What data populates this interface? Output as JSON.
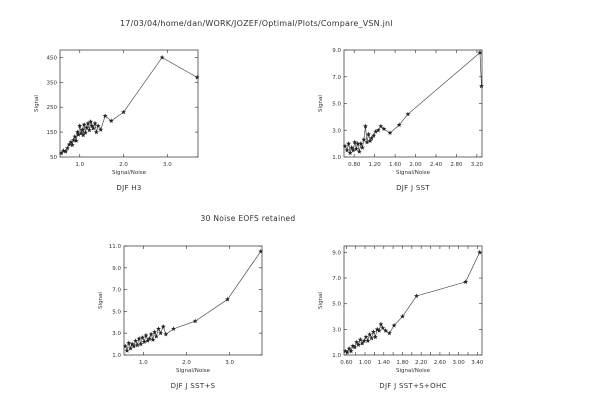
{
  "header": "17/03/04/home/dan/WORK/JOZEF/Optimal/Plots/Compare_VSN.jnl",
  "middle_caption": "30 Noise EOFS retained",
  "chart_data": [
    {
      "type": "line",
      "title": "DJF H3",
      "xlabel": "Signal/Noise",
      "ylabel": "Signal",
      "xlim": [
        0.55,
        3.7
      ],
      "ylim": [
        50,
        480
      ],
      "xticks": [
        1.0,
        2.0,
        3.0
      ],
      "xtick_labels": [
        "1.0",
        "2.0",
        "3.0"
      ],
      "yticks": [
        50,
        150,
        250,
        350,
        450
      ],
      "ytick_labels": [
        "50",
        "150",
        "250",
        "350",
        "450"
      ],
      "grid": false,
      "marker": "star",
      "series": [
        {
          "x": [
            0.58,
            0.63,
            0.68,
            0.72,
            0.76,
            0.8,
            0.83,
            0.86,
            0.89,
            0.92,
            0.95,
            0.97,
            1.0,
            1.03,
            1.06,
            1.08,
            1.1,
            1.13,
            1.16,
            1.19,
            1.22,
            1.25,
            1.28,
            1.31,
            1.35,
            1.38,
            1.42,
            1.48,
            1.58,
            1.72,
            2.0,
            2.88,
            3.68
          ],
          "y": [
            65,
            75,
            72,
            85,
            100,
            110,
            98,
            118,
            132,
            115,
            150,
            140,
            175,
            145,
            160,
            138,
            180,
            148,
            168,
            185,
            158,
            192,
            175,
            165,
            185,
            150,
            175,
            160,
            215,
            195,
            230,
            450,
            370
          ]
        }
      ]
    },
    {
      "type": "line",
      "title": "DJF J SST",
      "xlabel": "Signal/Noise",
      "ylabel": "Signal",
      "xlim": [
        0.6,
        3.3
      ],
      "ylim": [
        1.0,
        9.0
      ],
      "xticks": [
        0.8,
        1.2,
        1.6,
        2.0,
        2.4,
        2.8,
        3.2
      ],
      "xtick_labels": [
        "0.80",
        "1.20",
        "1.60",
        "2.00",
        "2.40",
        "2.80",
        "3.20"
      ],
      "yticks": [
        1.0,
        3.0,
        5.0,
        7.0,
        9.0
      ],
      "ytick_labels": [
        "1.0",
        "3.0",
        "5.0",
        "7.0",
        "9.0"
      ],
      "grid": false,
      "marker": "star",
      "series": [
        {
          "x": [
            0.62,
            0.66,
            0.69,
            0.72,
            0.75,
            0.78,
            0.81,
            0.84,
            0.87,
            0.9,
            0.93,
            0.96,
            0.99,
            1.02,
            1.05,
            1.08,
            1.11,
            1.14,
            1.18,
            1.22,
            1.27,
            1.32,
            1.38,
            1.5,
            1.68,
            1.85,
            3.26,
            3.29
          ],
          "y": [
            1.8,
            1.5,
            2.0,
            1.3,
            1.7,
            1.5,
            2.1,
            1.6,
            2.0,
            1.4,
            2.0,
            1.7,
            2.3,
            3.3,
            2.1,
            2.7,
            2.2,
            2.4,
            2.6,
            2.9,
            3.0,
            3.3,
            3.1,
            2.8,
            3.4,
            4.2,
            8.8,
            6.3
          ]
        }
      ]
    },
    {
      "type": "line",
      "title": "DJF J SST+S",
      "xlabel": "Signal/Noise",
      "ylabel": "Signal",
      "xlim": [
        0.55,
        3.75
      ],
      "ylim": [
        1.0,
        11.0
      ],
      "xticks": [
        1.0,
        2.0,
        3.0
      ],
      "xtick_labels": [
        "1.0",
        "2.0",
        "3.0"
      ],
      "yticks": [
        1.0,
        3.0,
        5.0,
        7.0,
        9.0,
        11.0
      ],
      "ytick_labels": [
        "1.0",
        "3.0",
        "5.0",
        "7.0",
        "9.0",
        "11.0"
      ],
      "grid": false,
      "marker": "star",
      "series": [
        {
          "x": [
            0.58,
            0.62,
            0.66,
            0.7,
            0.74,
            0.78,
            0.82,
            0.86,
            0.9,
            0.94,
            0.98,
            1.02,
            1.06,
            1.1,
            1.14,
            1.18,
            1.22,
            1.26,
            1.3,
            1.35,
            1.4,
            1.46,
            1.52,
            1.7,
            2.2,
            2.95,
            3.72
          ],
          "y": [
            1.8,
            1.4,
            2.1,
            1.6,
            2.0,
            1.8,
            2.3,
            1.9,
            2.5,
            2.0,
            2.6,
            2.2,
            2.8,
            2.3,
            2.5,
            2.9,
            2.4,
            3.1,
            2.7,
            3.4,
            3.0,
            3.6,
            2.9,
            3.4,
            4.1,
            6.1,
            10.5
          ]
        }
      ]
    },
    {
      "type": "line",
      "title": "DJF J SST+S+OHC",
      "xlabel": "Signal/Noise",
      "ylabel": "Signal",
      "xlim": [
        0.55,
        3.5
      ],
      "ylim": [
        1.0,
        9.5
      ],
      "xticks": [
        0.6,
        0.8,
        1.0,
        1.2,
        1.4,
        1.6,
        1.8,
        2.0,
        2.2,
        2.4,
        2.6,
        2.8,
        3.0,
        3.2,
        3.4
      ],
      "xtick_labels": [
        "0.60",
        "",
        "1.00",
        "",
        "1.40",
        "",
        "1.80",
        "",
        "2.20",
        "",
        "2.60",
        "",
        "3.00",
        "",
        "3.40"
      ],
      "yticks": [
        1.0,
        3.0,
        5.0,
        7.0,
        9.0
      ],
      "ytick_labels": [
        "1.0",
        "3.0",
        "5.0",
        "7.0",
        "9.0"
      ],
      "grid": false,
      "marker": "star",
      "series": [
        {
          "x": [
            0.58,
            0.62,
            0.66,
            0.7,
            0.74,
            0.78,
            0.82,
            0.86,
            0.9,
            0.94,
            0.98,
            1.02,
            1.06,
            1.1,
            1.14,
            1.18,
            1.22,
            1.26,
            1.3,
            1.34,
            1.38,
            1.44,
            1.52,
            1.62,
            1.8,
            2.1,
            3.15,
            3.45
          ],
          "y": [
            1.3,
            1.2,
            1.5,
            1.3,
            1.7,
            1.6,
            2.0,
            1.8,
            2.2,
            1.9,
            2.1,
            2.4,
            2.1,
            2.6,
            2.3,
            2.8,
            2.4,
            3.0,
            2.9,
            3.4,
            3.1,
            2.9,
            2.7,
            3.3,
            4.0,
            5.6,
            6.7,
            9.0
          ]
        }
      ]
    }
  ]
}
